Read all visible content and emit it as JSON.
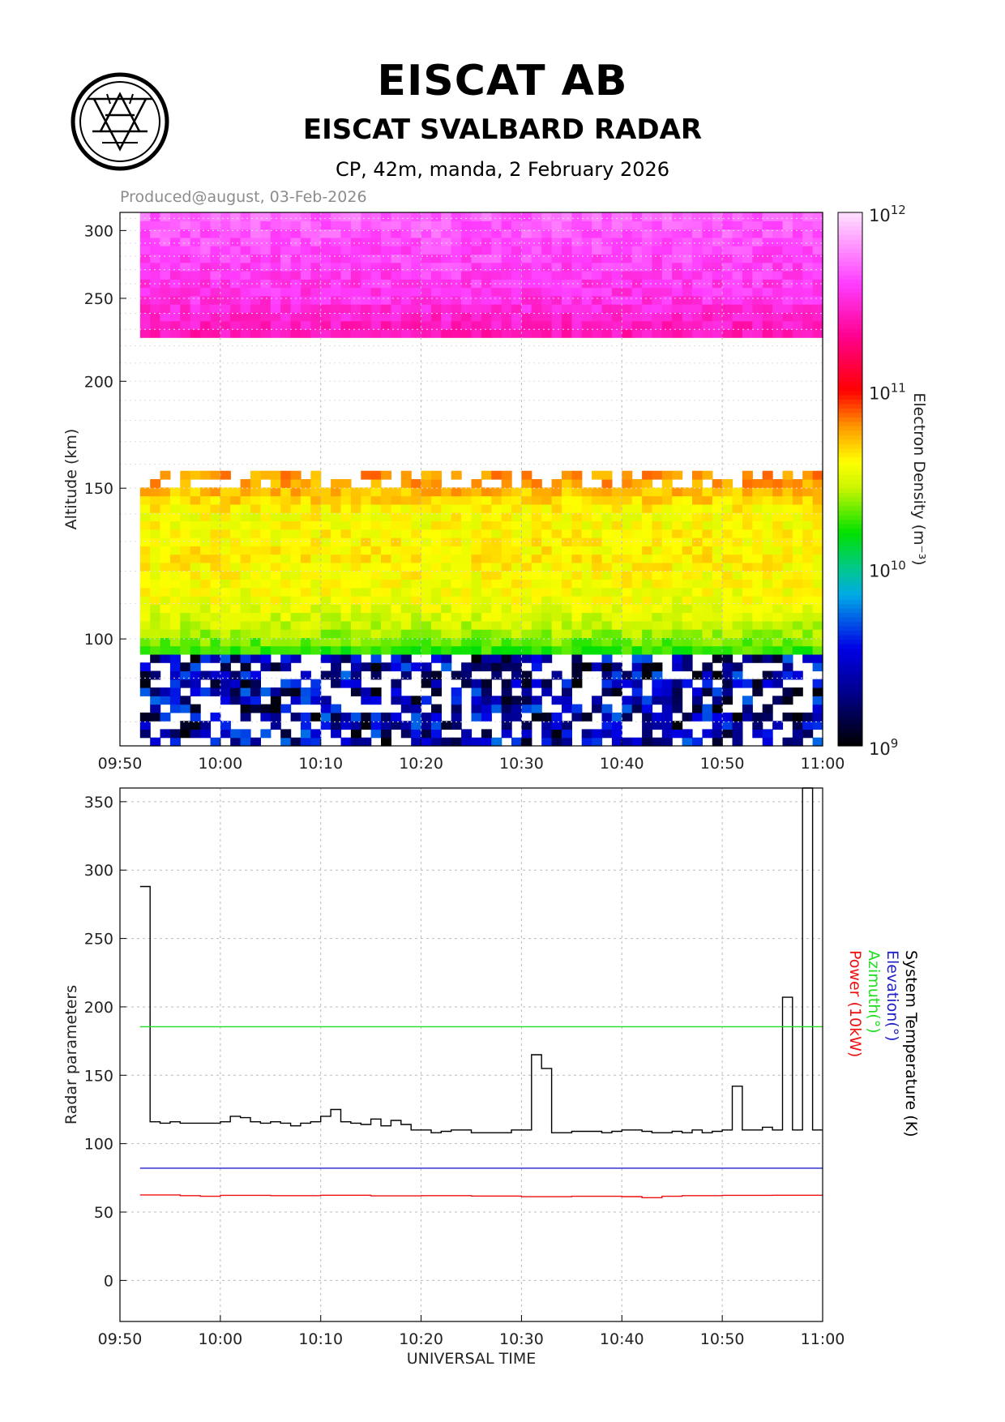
{
  "header": {
    "org": "EISCAT AB",
    "radar": "EISCAT SVALBARD RADAR",
    "experiment": "CP, 42m, manda, 2 February 2026",
    "produced": "Produced@august, 03-Feb-2026"
  },
  "colors": {
    "temperature": "#000000",
    "elevation": "#2020c8",
    "azimuth": "#22dd22",
    "power": "#ee1111",
    "grid": "#bbbbbb"
  },
  "chart_data": [
    {
      "type": "heatmap",
      "title": "Electron density",
      "xlabel": "",
      "ylabel": "Altitude (km)",
      "colorbar_label": "Electron Density (m⁻³)",
      "x_tick_labels": [
        "09:50",
        "10:00",
        "10:10",
        "10:20",
        "10:30",
        "10:40",
        "10:50",
        "11:00"
      ],
      "x_ticks_min": [
        0,
        10,
        20,
        30,
        40,
        50,
        60,
        70
      ],
      "xlim_min": [
        0,
        70
      ],
      "data_start_min": 2,
      "y_tick_labels": [
        "100",
        "150",
        "200",
        "250",
        "300"
      ],
      "y_ticks": [
        100,
        150,
        200,
        250,
        300
      ],
      "ylim": [
        75,
        315
      ],
      "log_y": true,
      "colorbar": {
        "range_log10": [
          9,
          12
        ],
        "ticks": [
          {
            "base": "10",
            "exp": "12",
            "log": 12
          },
          {
            "base": "10",
            "exp": "11",
            "log": 11
          },
          {
            "base": "10",
            "exp": "10",
            "log": 10
          },
          {
            "base": "10",
            "exp": "9",
            "log": 9
          }
        ]
      },
      "profile_log10": [
        {
          "alt": 77,
          "v": 9.3
        },
        {
          "alt": 82,
          "v": 9.55
        },
        {
          "alt": 88,
          "v": 9.85
        },
        {
          "alt": 93,
          "v": 10.1
        },
        {
          "alt": 98,
          "v": 10.3
        },
        {
          "alt": 103,
          "v": 10.45
        },
        {
          "alt": 110,
          "v": 10.55
        },
        {
          "alt": 125,
          "v": 10.62
        },
        {
          "alt": 140,
          "v": 10.58
        },
        {
          "alt": 150,
          "v": 10.75
        },
        {
          "alt": 157,
          "v": 10.8
        },
        {
          "alt": 225,
          "v": 11.4
        },
        {
          "alt": 250,
          "v": 11.55
        },
        {
          "alt": 280,
          "v": 11.62
        },
        {
          "alt": 315,
          "v": 11.7
        }
      ],
      "gaps_km": [
        [
          157,
          224
        ]
      ]
    },
    {
      "type": "line",
      "title": "Radar parameters",
      "xlabel": "UNIVERSAL TIME",
      "ylabel": "Radar parameters",
      "x_tick_labels": [
        "09:50",
        "10:00",
        "10:10",
        "10:20",
        "10:30",
        "10:40",
        "10:50",
        "11:00"
      ],
      "x_ticks_min": [
        0,
        10,
        20,
        30,
        40,
        50,
        60,
        70
      ],
      "xlim_min": [
        0,
        70
      ],
      "y_tick_labels": [
        "0",
        "50",
        "100",
        "150",
        "200",
        "250",
        "300",
        "350"
      ],
      "y_ticks": [
        0,
        50,
        100,
        150,
        200,
        250,
        300,
        350
      ],
      "ylim": [
        -30,
        360
      ],
      "legend": [
        {
          "label": "System Temperature (K)",
          "color_key": "temperature"
        },
        {
          "label": "Elevation(°)",
          "color_key": "elevation"
        },
        {
          "label": "Azimuth(°)",
          "color_key": "azimuth"
        },
        {
          "label": "Power (10kW)",
          "color_key": "power"
        }
      ],
      "series": [
        {
          "name": "System Temperature (K)",
          "color_key": "temperature",
          "step": true,
          "x": [
            2,
            3,
            4,
            5,
            6,
            7,
            8,
            9,
            10,
            11,
            12,
            13,
            14,
            15,
            16,
            17,
            18,
            19,
            20,
            21,
            22,
            23,
            24,
            25,
            26,
            27,
            28,
            29,
            30,
            31,
            32,
            33,
            34,
            35,
            36,
            37,
            38,
            39,
            40,
            41,
            42,
            43,
            44,
            45,
            46,
            47,
            48,
            49,
            50,
            51,
            52,
            53,
            54,
            55,
            56,
            57,
            58,
            59,
            60,
            61,
            62,
            63,
            64,
            65,
            66,
            67,
            68,
            69,
            70
          ],
          "values": [
            288,
            116,
            115,
            116,
            115,
            115,
            115,
            115,
            116,
            120,
            119,
            116,
            115,
            116,
            115,
            113,
            115,
            116,
            120,
            125,
            116,
            115,
            114,
            118,
            113,
            117,
            114,
            110,
            110,
            108,
            109,
            110,
            110,
            108,
            108,
            108,
            108,
            110,
            110,
            165,
            155,
            108,
            108,
            109,
            109,
            109,
            108,
            109,
            110,
            110,
            109,
            108,
            108,
            109,
            108,
            110,
            108,
            109,
            110,
            142,
            110,
            110,
            112,
            110,
            207,
            110,
            360,
            110,
            110
          ]
        },
        {
          "name": "Elevation(°)",
          "color_key": "elevation",
          "step": false,
          "x": [
            2,
            70
          ],
          "values": [
            82.1,
            82.1
          ]
        },
        {
          "name": "Azimuth(°)",
          "color_key": "azimuth",
          "step": false,
          "x": [
            2,
            70
          ],
          "values": [
            185.5,
            185.5
          ]
        },
        {
          "name": "Power (10kW)",
          "color_key": "power",
          "step": true,
          "x": [
            2,
            6,
            8,
            10,
            15,
            20,
            25,
            30,
            35,
            40,
            45,
            50,
            52,
            54,
            56,
            60,
            65,
            70
          ],
          "values": [
            62.5,
            62,
            61.5,
            62.2,
            62,
            62.3,
            61.8,
            62,
            61.7,
            61.2,
            61.5,
            61.3,
            60.5,
            61.5,
            62,
            62.2,
            62.3,
            62.3
          ]
        }
      ]
    }
  ]
}
